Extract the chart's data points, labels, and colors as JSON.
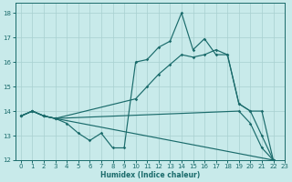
{
  "xlabel": "Humidex (Indice chaleur)",
  "background_color": "#c8eaea",
  "line_color": "#1a6b6b",
  "grid_color": "#a8d0d0",
  "xlim": [
    -0.5,
    23
  ],
  "ylim": [
    12,
    18.4
  ],
  "xticks": [
    0,
    1,
    2,
    3,
    4,
    5,
    6,
    7,
    8,
    9,
    10,
    11,
    12,
    13,
    14,
    15,
    16,
    17,
    18,
    19,
    20,
    21,
    22,
    23
  ],
  "yticks": [
    12,
    13,
    14,
    15,
    16,
    17,
    18
  ],
  "lines": [
    {
      "x": [
        0,
        1,
        2,
        3,
        4,
        5,
        6,
        7,
        8,
        9,
        10,
        11,
        12,
        13,
        14,
        15,
        16,
        17,
        18,
        19,
        20,
        21,
        22
      ],
      "y": [
        13.8,
        14.0,
        13.8,
        13.7,
        13.5,
        13.1,
        12.8,
        13.1,
        12.5,
        12.5,
        16.0,
        16.1,
        16.6,
        16.85,
        18.0,
        16.5,
        16.95,
        16.3,
        16.3,
        14.3,
        14.0,
        13.0,
        12.0
      ]
    },
    {
      "x": [
        0,
        1,
        2,
        3,
        10,
        11,
        12,
        13,
        14,
        15,
        16,
        17,
        18,
        19,
        20,
        21,
        22
      ],
      "y": [
        13.8,
        14.0,
        13.8,
        13.7,
        14.5,
        15.0,
        15.5,
        15.9,
        16.3,
        16.2,
        16.3,
        16.5,
        16.3,
        14.3,
        14.0,
        14.0,
        12.0
      ]
    },
    {
      "x": [
        0,
        1,
        2,
        3,
        19,
        20,
        21,
        22
      ],
      "y": [
        13.8,
        14.0,
        13.8,
        13.7,
        14.0,
        13.5,
        12.5,
        12.0
      ]
    },
    {
      "x": [
        0,
        1,
        2,
        3,
        22
      ],
      "y": [
        13.8,
        14.0,
        13.8,
        13.7,
        12.0
      ]
    }
  ]
}
